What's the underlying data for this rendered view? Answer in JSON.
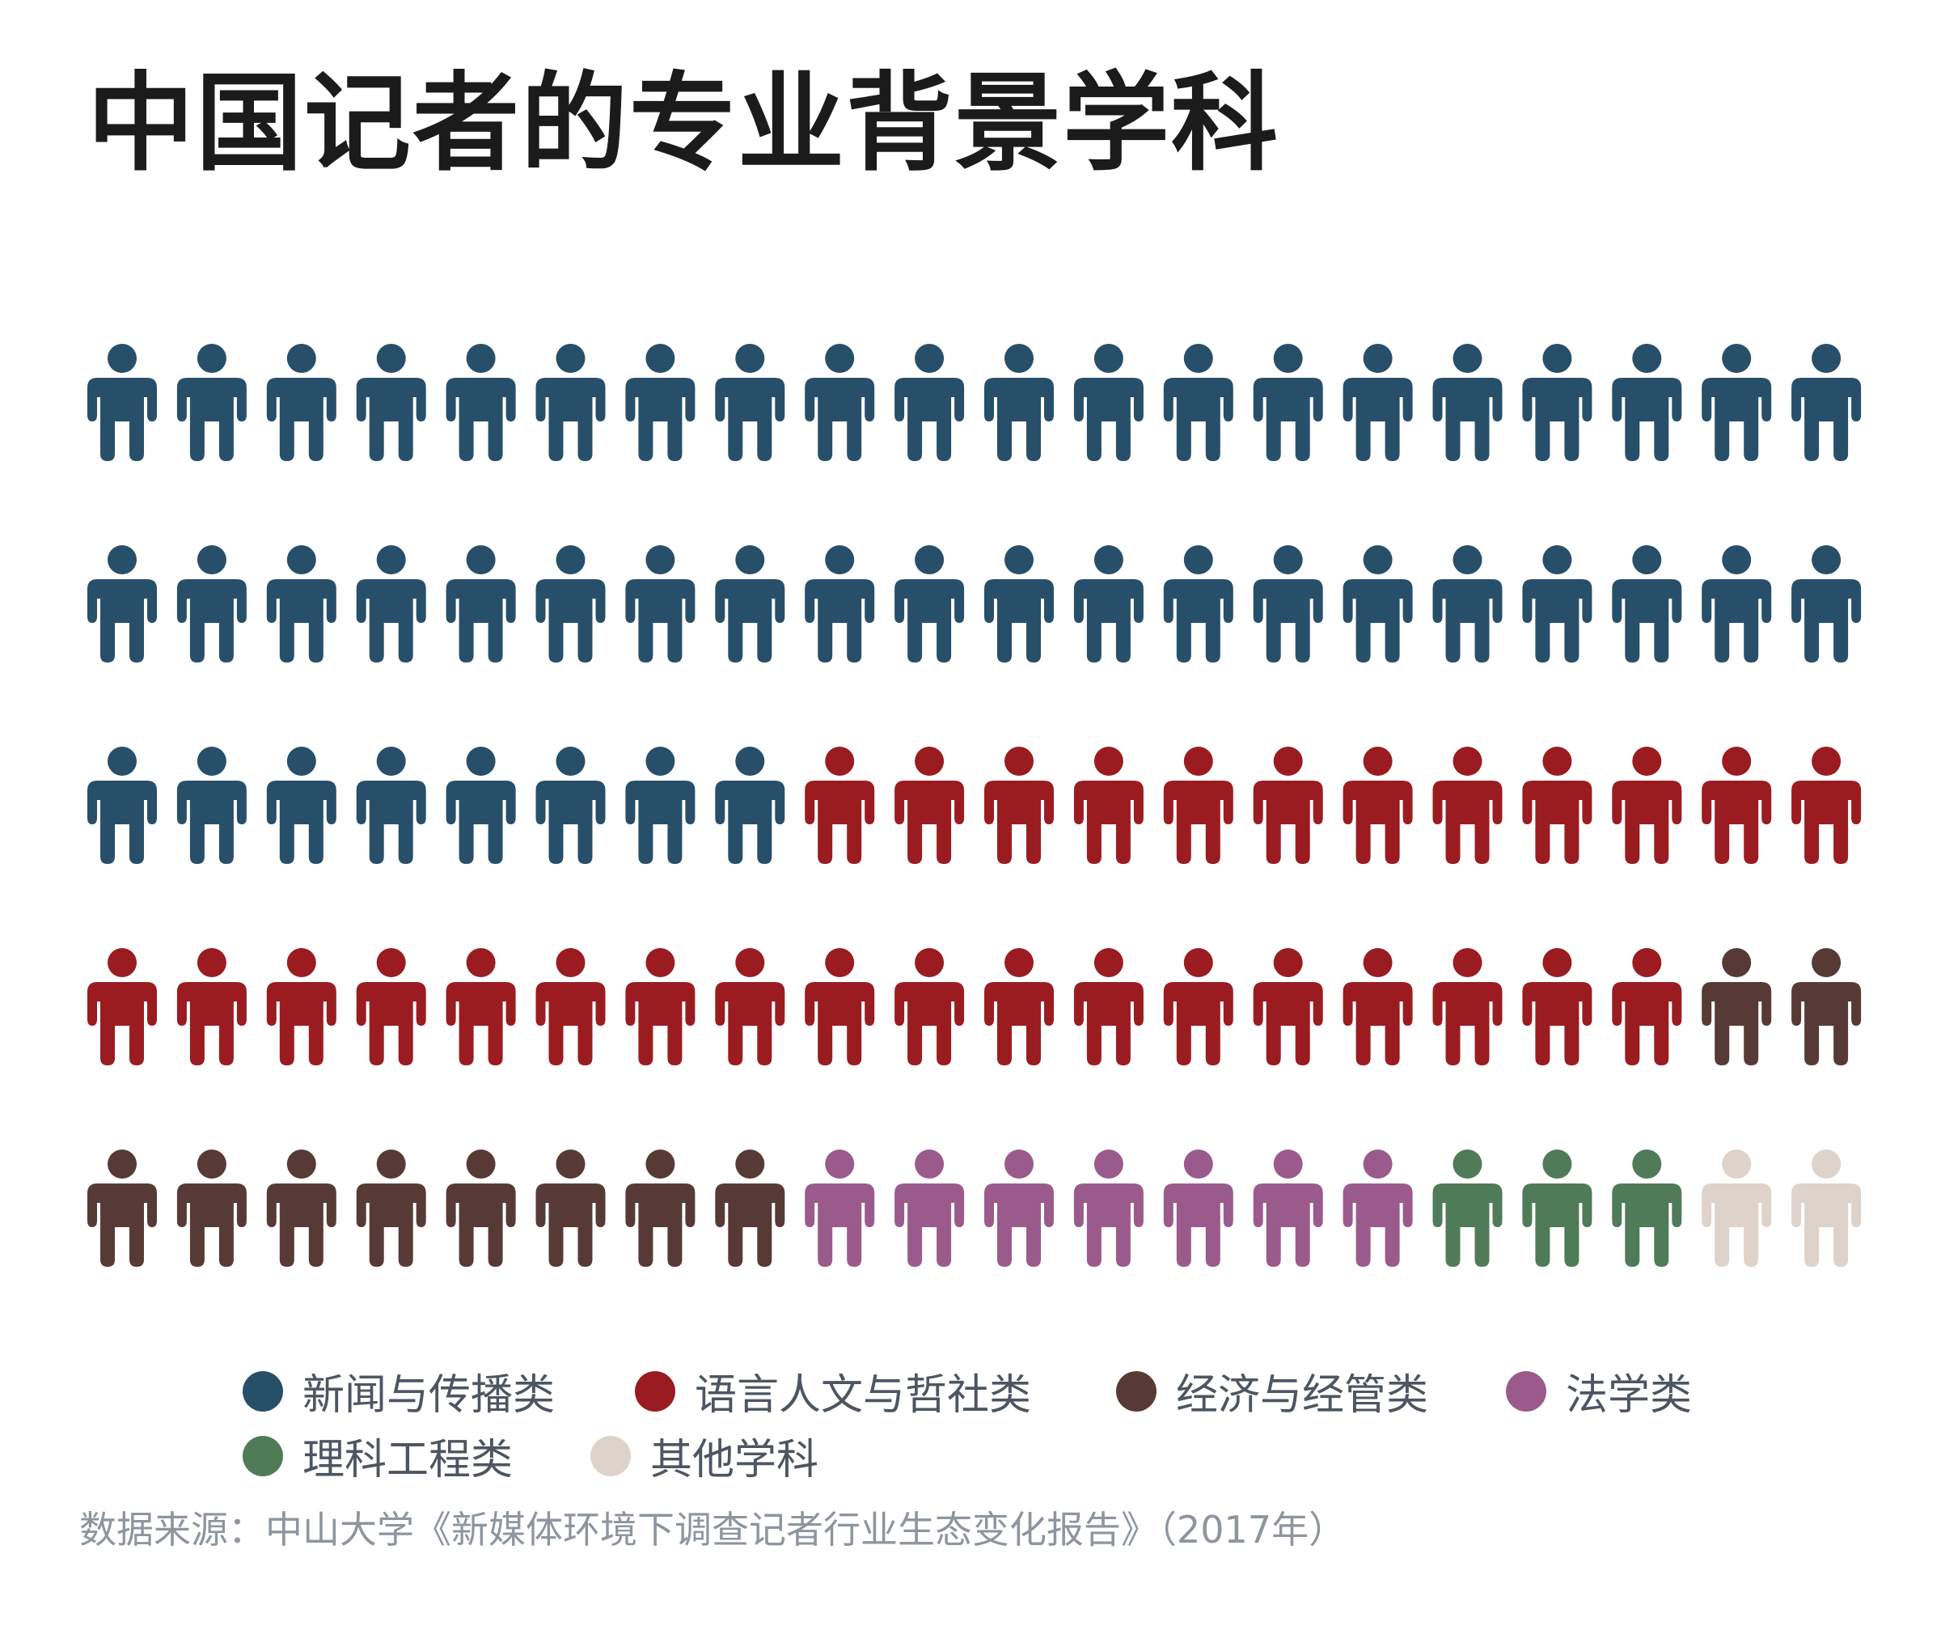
{
  "title": "中国记者的专业背景学科",
  "source": "数据来源：中山大学《新媒体环境下调查记者行业生态变化报告》（2017年）",
  "chart_data": {
    "type": "pictogram",
    "title": "中国记者的专业背景学科",
    "rows": 5,
    "columns": 20,
    "total_icons": 100,
    "categories": [
      {
        "name": "新闻与传播类",
        "count": 48,
        "color": "#284f6a"
      },
      {
        "name": "语言人文与哲社类",
        "count": 30,
        "color": "#9a1c21"
      },
      {
        "name": "经济与经管类",
        "count": 10,
        "color": "#573a36"
      },
      {
        "name": "法学类",
        "count": 7,
        "color": "#9a5b8c"
      },
      {
        "name": "理科工程类",
        "count": 3,
        "color": "#507b58"
      },
      {
        "name": "其他学科",
        "count": 2,
        "color": "#ddd3ca"
      }
    ]
  }
}
